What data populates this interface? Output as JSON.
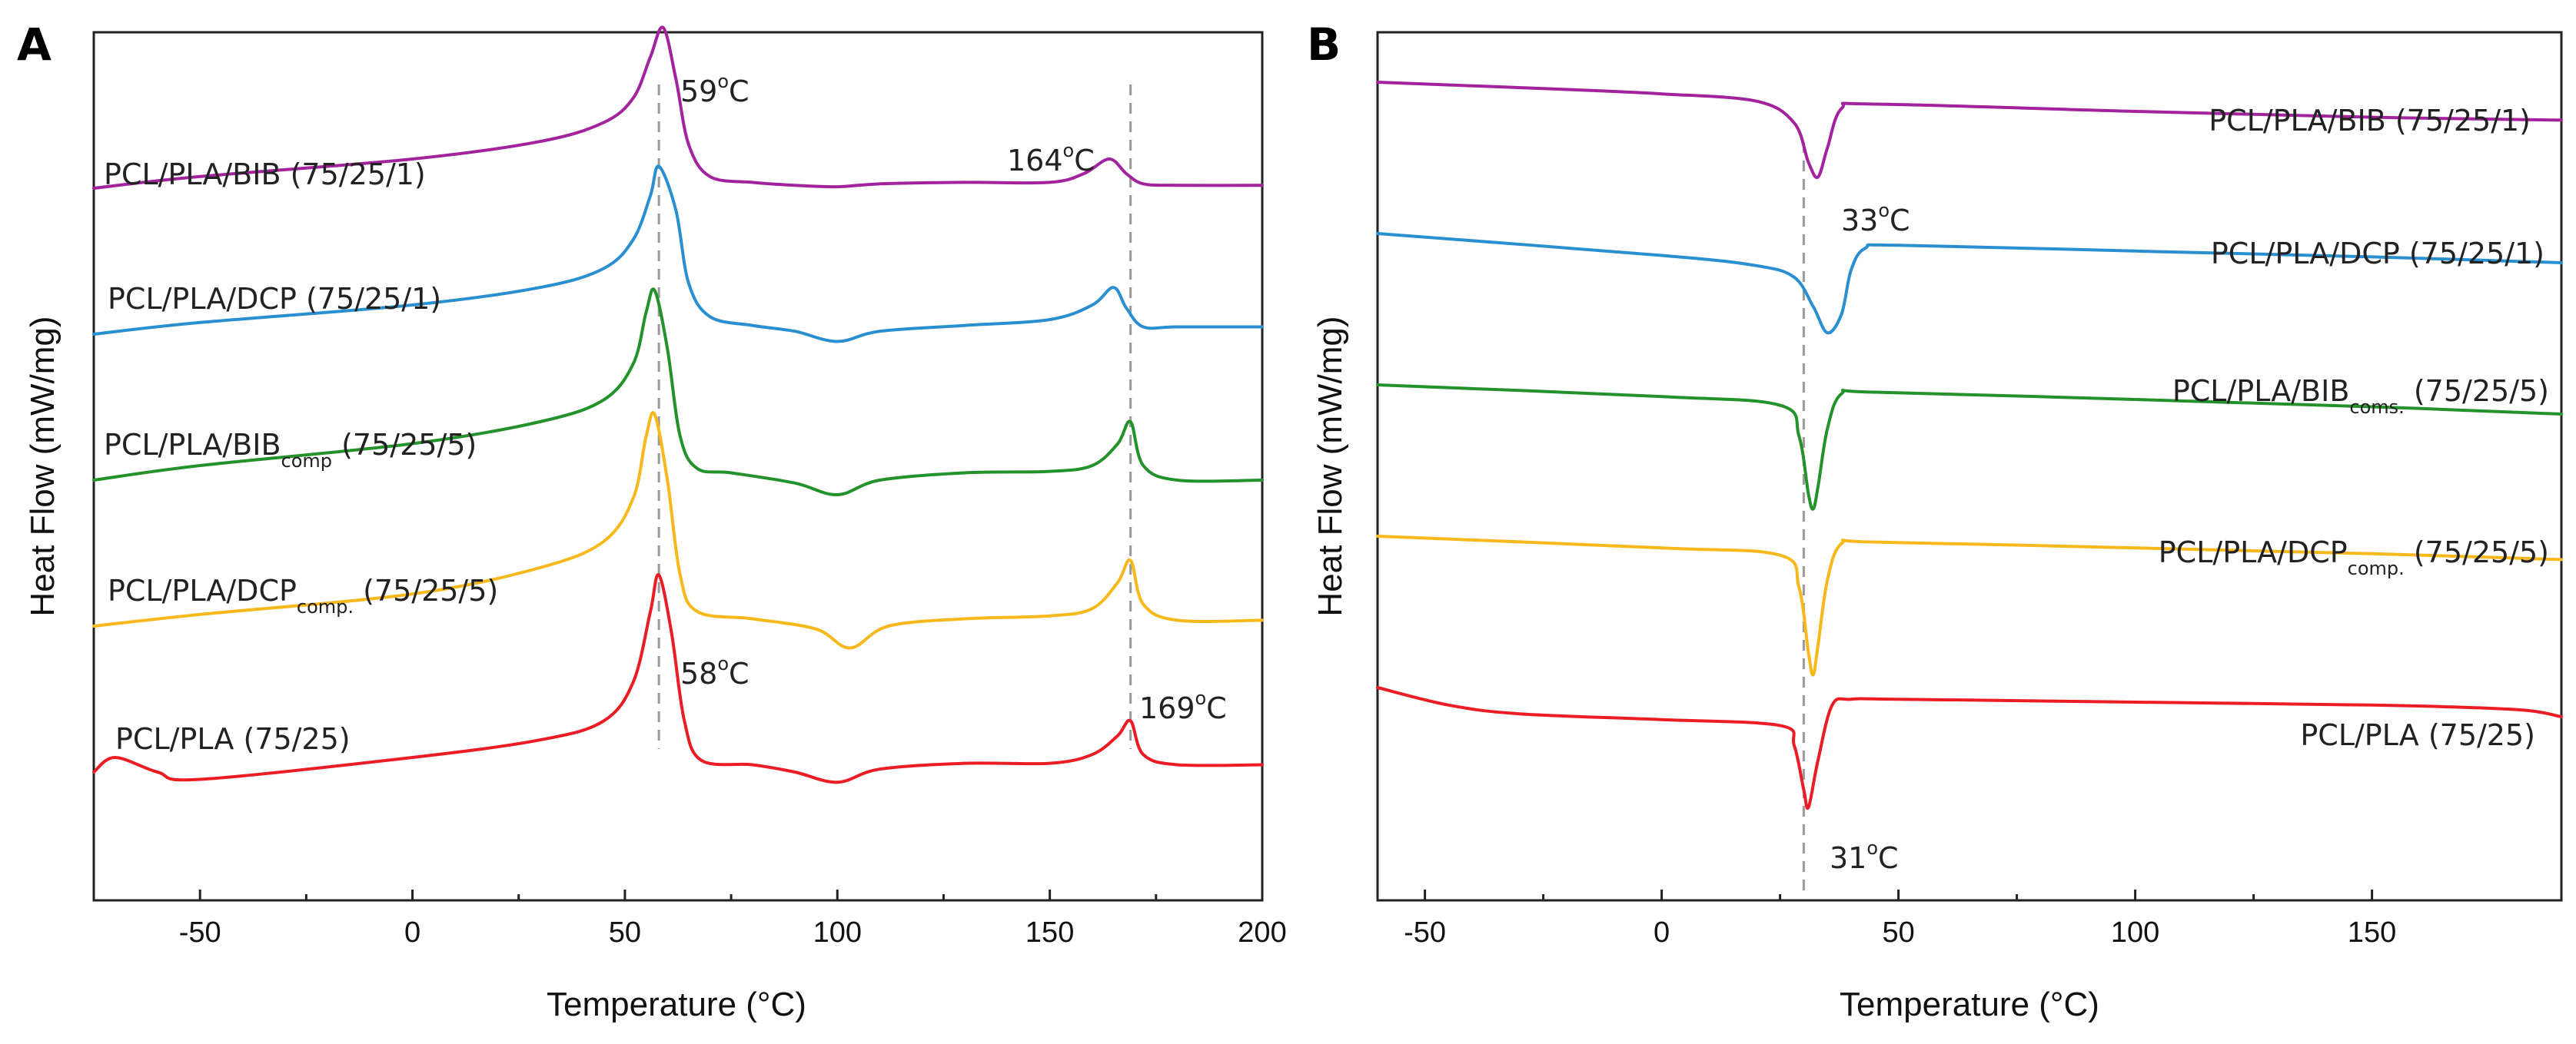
{
  "panels": {
    "a": {
      "letter": "A"
    },
    "b": {
      "letter": "B"
    }
  },
  "chart_data": [
    {
      "panel": "A",
      "type": "line",
      "xlabel": "Temperature (°C)",
      "ylabel": "Heat Flow (mW/mg)",
      "xlim": [
        -75,
        200
      ],
      "xticks": [
        -50,
        0,
        50,
        100,
        150,
        200
      ],
      "y_ticks_labeled": false,
      "grid": false,
      "legend": "inline labels beside each curve",
      "series": [
        {
          "name": "PCL/PLA/BIB (75/25/1)",
          "label_main": "PCL/PLA/BIB (75/25/1)",
          "label_sub": "",
          "label_tail": "",
          "color": "#a3229d",
          "offset": 4,
          "x": [
            -75,
            -50,
            0,
            30,
            45,
            52,
            56,
            59,
            62,
            65,
            70,
            80,
            90,
            100,
            110,
            130,
            150,
            158,
            164,
            168,
            172,
            180,
            200
          ],
          "y": [
            0.0,
            0.08,
            0.2,
            0.32,
            0.45,
            0.62,
            0.9,
            1.1,
            0.75,
            0.3,
            0.08,
            0.04,
            0.02,
            0.01,
            0.03,
            0.04,
            0.04,
            0.1,
            0.2,
            0.1,
            0.03,
            0.02,
            0.02
          ]
        },
        {
          "name": "PCL/PLA/DCP (75/25/1)",
          "label_main": "PCL/PLA/DCP (75/25/1)",
          "label_sub": "",
          "label_tail": "",
          "color": "#2a8fd0",
          "offset": 3,
          "x": [
            -75,
            -50,
            0,
            30,
            45,
            52,
            56,
            58,
            62,
            65,
            70,
            80,
            90,
            100,
            110,
            130,
            150,
            160,
            165,
            168,
            172,
            180,
            200
          ],
          "y": [
            0.0,
            0.08,
            0.2,
            0.32,
            0.45,
            0.65,
            0.95,
            1.15,
            0.85,
            0.35,
            0.12,
            0.06,
            0.02,
            -0.05,
            0.02,
            0.06,
            0.1,
            0.2,
            0.32,
            0.18,
            0.05,
            0.05,
            0.05
          ]
        },
        {
          "name": "PCL/PLA/BIBcomp (75/25/5)",
          "label_main": "PCL/PLA/BIB",
          "label_sub": "comp",
          "label_tail": " (75/25/5)",
          "color": "#23922b",
          "offset": 2,
          "x": [
            -75,
            -50,
            0,
            30,
            45,
            52,
            55,
            57,
            60,
            63,
            67,
            75,
            90,
            100,
            110,
            130,
            150,
            160,
            166,
            169,
            172,
            180,
            200
          ],
          "y": [
            0.0,
            0.1,
            0.25,
            0.4,
            0.55,
            0.8,
            1.15,
            1.3,
            0.9,
            0.3,
            0.08,
            0.05,
            -0.02,
            -0.1,
            0.0,
            0.05,
            0.06,
            0.1,
            0.25,
            0.4,
            0.1,
            0.0,
            0.0
          ]
        },
        {
          "name": "PCL/PLA/DCPcomp. (75/25/5)",
          "label_main": "PCL/PLA/DCP",
          "label_sub": "comp.",
          "label_tail": " (75/25/5)",
          "color": "#f7b81c",
          "offset": 1,
          "x": [
            -75,
            -50,
            0,
            30,
            45,
            52,
            55,
            57,
            60,
            63,
            67,
            80,
            95,
            103,
            112,
            130,
            150,
            160,
            166,
            169,
            172,
            180,
            200
          ],
          "y": [
            0.0,
            0.08,
            0.22,
            0.4,
            0.58,
            0.88,
            1.3,
            1.45,
            1.0,
            0.35,
            0.1,
            0.05,
            -0.02,
            -0.15,
            0.0,
            0.05,
            0.07,
            0.12,
            0.3,
            0.45,
            0.15,
            0.04,
            0.04
          ]
        },
        {
          "name": "PCL/PLA (75/25)",
          "label_main": "PCL/PLA (75/25)",
          "label_sub": "",
          "label_tail": "",
          "color": "#ec1c24",
          "offset": 0,
          "x": [
            -75,
            -70,
            -60,
            -50,
            0,
            30,
            45,
            52,
            56,
            58,
            61,
            64,
            68,
            80,
            90,
            100,
            110,
            130,
            150,
            160,
            166,
            169,
            172,
            180,
            200
          ],
          "y": [
            0.0,
            0.1,
            0.0,
            -0.05,
            0.1,
            0.22,
            0.35,
            0.62,
            1.1,
            1.35,
            0.95,
            0.35,
            0.08,
            0.05,
            0.0,
            -0.07,
            0.02,
            0.06,
            0.06,
            0.12,
            0.25,
            0.35,
            0.12,
            0.05,
            0.05
          ]
        }
      ],
      "annotations": [
        {
          "main": "59",
          "sup": "o",
          "unit": "C",
          "x": 59
        },
        {
          "main": "164",
          "sup": "o",
          "unit": "C",
          "x": 164
        },
        {
          "main": "58",
          "sup": "o",
          "unit": "C",
          "x": 58
        },
        {
          "main": "169",
          "sup": "o",
          "unit": "C",
          "x": 169
        }
      ],
      "guide_lines_x": [
        58,
        169
      ]
    },
    {
      "panel": "B",
      "type": "line",
      "xlabel": "Temperature (°C)",
      "ylabel": "Heat Flow (mW/mg)",
      "xlim": [
        -60,
        190
      ],
      "xticks": [
        -50,
        0,
        50,
        100,
        150
      ],
      "y_ticks_labeled": false,
      "grid": false,
      "legend": "inline labels beside each curve",
      "series": [
        {
          "name": "PCL/PLA/BIB (75/25/1)",
          "label_main": "PCL/PLA/BIB (75/25/1)",
          "label_sub": "",
          "label_tail": "",
          "color": "#a3229d",
          "offset": 4,
          "x": [
            -60,
            -20,
            0,
            20,
            28,
            31,
            33,
            35,
            38,
            45,
            100,
            150,
            190
          ],
          "y": [
            0.0,
            -0.05,
            -0.08,
            -0.13,
            -0.28,
            -0.55,
            -0.65,
            -0.45,
            -0.18,
            -0.15,
            -0.2,
            -0.24,
            -0.26
          ]
        },
        {
          "name": "PCL/PLA/DCP (75/25/1)",
          "label_main": "PCL/PLA/DCP (75/25/1)",
          "label_sub": "",
          "label_tail": "",
          "color": "#2a8fd0",
          "offset": 3,
          "x": [
            -60,
            0,
            20,
            28,
            32,
            35,
            38,
            40,
            43,
            50,
            100,
            150,
            190
          ],
          "y": [
            0.0,
            -0.15,
            -0.22,
            -0.3,
            -0.5,
            -0.68,
            -0.55,
            -0.25,
            -0.1,
            -0.08,
            -0.12,
            -0.16,
            -0.2
          ]
        },
        {
          "name": "PCL/PLA/BIBcoms. (75/25/5)",
          "label_main": "PCL/PLA/BIB",
          "label_sub": "coms.",
          "label_tail": " (75/25/5)",
          "color": "#23922b",
          "offset": 2,
          "x": [
            -60,
            0,
            25,
            29,
            31,
            32,
            33,
            35,
            38,
            45,
            100,
            150,
            190
          ],
          "y": [
            0.0,
            -0.08,
            -0.14,
            -0.35,
            -0.75,
            -0.85,
            -0.7,
            -0.3,
            -0.06,
            -0.05,
            -0.1,
            -0.15,
            -0.2
          ]
        },
        {
          "name": "PCL/PLA/DCPcomp. (75/25/5)",
          "label_main": "PCL/PLA/DCP",
          "label_sub": "comp.",
          "label_tail": " (75/25/5)",
          "color": "#f7b81c",
          "offset": 1,
          "x": [
            -60,
            0,
            25,
            29,
            31,
            32,
            33,
            35,
            38,
            45,
            100,
            150,
            190
          ],
          "y": [
            0.0,
            -0.08,
            -0.13,
            -0.35,
            -0.8,
            -0.95,
            -0.75,
            -0.3,
            -0.05,
            -0.04,
            -0.08,
            -0.12,
            -0.16
          ]
        },
        {
          "name": "PCL/PLA (75/25)",
          "label_main": "PCL/PLA (75/25)",
          "label_sub": "",
          "label_tail": "",
          "color": "#ec1c24",
          "offset": 0,
          "x": [
            -60,
            -45,
            -30,
            0,
            25,
            28,
            30,
            31,
            33,
            36,
            40,
            50,
            100,
            150,
            180,
            190
          ],
          "y": [
            0.0,
            -0.12,
            -0.18,
            -0.22,
            -0.26,
            -0.4,
            -0.7,
            -0.82,
            -0.5,
            -0.12,
            -0.08,
            -0.08,
            -0.1,
            -0.12,
            -0.15,
            -0.2
          ]
        }
      ],
      "annotations": [
        {
          "main": "33",
          "sup": "o",
          "unit": "C",
          "x": 33
        },
        {
          "main": "31",
          "sup": "o",
          "unit": "C",
          "x": 31
        }
      ],
      "guide_lines_x": [
        30
      ]
    }
  ]
}
